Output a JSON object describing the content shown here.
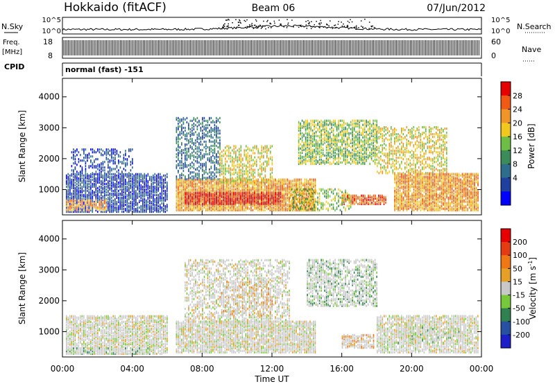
{
  "header": {
    "station": "Hokkaido (fitACF)",
    "beam": "Beam 06",
    "date": "07/Jun/2012"
  },
  "strip_labels": {
    "nsky": "N.Sky",
    "nsky_ticks": [
      "10^5",
      "10^0"
    ],
    "nsearch": "N.Search",
    "nsearch_ticks": [
      "10^5",
      "10^0"
    ],
    "freq": "Freq.",
    "freq_unit": "[MHz]",
    "freq_ticks": [
      "18",
      "8"
    ],
    "nave": "Nave",
    "nave_ticks": [
      "60",
      "0"
    ],
    "cpid": "CPID",
    "mode": "normal (fast) -151"
  },
  "panels": {
    "power": {
      "ylabel": "Slant Range [km]",
      "cbar_label": "Power [dB]",
      "cbar_ticks": [
        "28",
        "24",
        "20",
        "16",
        "12",
        "8",
        "4"
      ]
    },
    "velocity": {
      "ylabel": "Slant Range [km]",
      "cbar_label": "Velocity [m s",
      "cbar_label_sup": "-1",
      "cbar_label_end": "]",
      "cbar_ticks": [
        "200",
        "100",
        "50",
        "15",
        "-15",
        "-50",
        "-100",
        "-200"
      ]
    }
  },
  "chart_data": {
    "type": "heatmap",
    "xlabel": "Time UT",
    "x_ticks": [
      "00:00",
      "04:00",
      "08:00",
      "12:00",
      "16:00",
      "20:00",
      "00:00"
    ],
    "xlim_hours": [
      0,
      24
    ],
    "y_ticks": [
      1000,
      2000,
      3000,
      4000
    ],
    "ylim_km": [
      180,
      4600
    ],
    "power_colors": [
      "#0000ff",
      "#2040a0",
      "#2e6e8c",
      "#3c8c5a",
      "#6ebe46",
      "#f0c81e",
      "#f09628",
      "#f05a14",
      "#e60000"
    ],
    "velocity_colors": [
      "#1e1ec8",
      "#2850a0",
      "#2f8250",
      "#78c83c",
      "#c8c8c8",
      "#e6a028",
      "#f07814",
      "#e63c14",
      "#e60000"
    ],
    "power_regions": [
      {
        "t0": 0.2,
        "t1": 6.0,
        "r0": 250,
        "r1": 1500,
        "level": 1,
        "density": 0.75
      },
      {
        "t0": 0.5,
        "t1": 4.0,
        "r0": 1500,
        "r1": 2300,
        "level": 1,
        "density": 0.35
      },
      {
        "t0": 0.2,
        "t1": 2.5,
        "r0": 300,
        "r1": 650,
        "level": 6,
        "density": 0.6
      },
      {
        "t0": 6.5,
        "t1": 14.5,
        "r0": 300,
        "r1": 1300,
        "level": 6,
        "density": 0.85
      },
      {
        "t0": 7.0,
        "t1": 12.5,
        "r0": 500,
        "r1": 900,
        "level": 8,
        "density": 0.8
      },
      {
        "t0": 6.5,
        "t1": 9.0,
        "r0": 1300,
        "r1": 3300,
        "level": 2,
        "density": 0.45
      },
      {
        "t0": 9.0,
        "t1": 12.0,
        "r0": 1200,
        "r1": 2400,
        "level": 5,
        "density": 0.45
      },
      {
        "t0": 13.5,
        "t1": 18.0,
        "r0": 1800,
        "r1": 3200,
        "level": 4,
        "density": 0.6
      },
      {
        "t0": 16.0,
        "t1": 18.5,
        "r0": 500,
        "r1": 800,
        "level": 7,
        "density": 0.8
      },
      {
        "t0": 18.0,
        "t1": 22.0,
        "r0": 1500,
        "r1": 3000,
        "level": 5,
        "density": 0.45
      },
      {
        "t0": 19.0,
        "t1": 23.8,
        "r0": 300,
        "r1": 1500,
        "level": 6,
        "density": 0.8
      },
      {
        "t0": 13.0,
        "t1": 16.5,
        "r0": 300,
        "r1": 1000,
        "level": 4,
        "density": 0.4
      }
    ],
    "velocity_regions": [
      {
        "t0": 0.2,
        "t1": 6.0,
        "r0": 250,
        "r1": 1500,
        "level": 4,
        "density": 0.75
      },
      {
        "t0": 0.2,
        "t1": 5.0,
        "r0": 250,
        "r1": 450,
        "level": 3,
        "density": 0.55
      },
      {
        "t0": 6.5,
        "t1": 14.5,
        "r0": 300,
        "r1": 1300,
        "level": 4,
        "density": 0.8
      },
      {
        "t0": 7.0,
        "t1": 13.0,
        "r0": 1300,
        "r1": 3300,
        "level": 4,
        "density": 0.45
      },
      {
        "t0": 9.0,
        "t1": 12.0,
        "r0": 1500,
        "r1": 2600,
        "level": 5,
        "density": 0.3
      },
      {
        "t0": 14.0,
        "t1": 18.0,
        "r0": 1800,
        "r1": 3300,
        "level": 3,
        "density": 0.55
      },
      {
        "t0": 16.0,
        "t1": 17.8,
        "r0": 450,
        "r1": 900,
        "level": 5,
        "density": 0.75
      },
      {
        "t0": 18.0,
        "t1": 23.8,
        "r0": 300,
        "r1": 1500,
        "level": 4,
        "density": 0.7
      },
      {
        "t0": 19.0,
        "t1": 23.0,
        "r0": 600,
        "r1": 1100,
        "level": 3,
        "density": 0.3
      }
    ]
  }
}
